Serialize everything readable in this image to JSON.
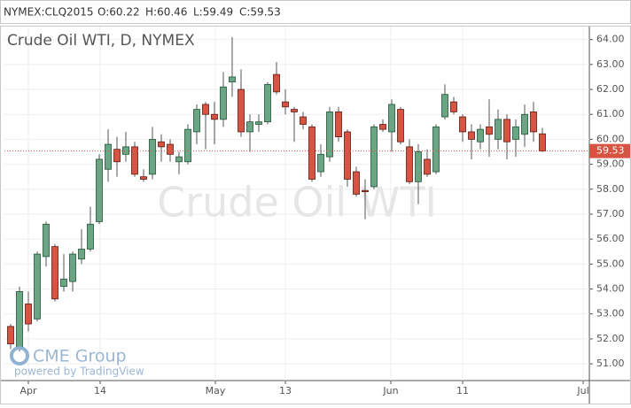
{
  "header": {
    "symbol": "NYMEX:CLQ2015",
    "ohlc": [
      "O:60.22",
      "H:60.46",
      "L:59.49",
      "C:59.53"
    ]
  },
  "chart_data": {
    "type": "candlestick",
    "title": "Crude Oil WTI, D, NYMEX",
    "watermark": "Crude Oil WTI",
    "logo": "CME Group",
    "powered_by": "powered by TradingView",
    "up_color": "#6ba583",
    "down_color": "#d75442",
    "last_price": 59.53,
    "last_price_color": "#d75442",
    "open": [
      52.5,
      51.7,
      53.4,
      52.8,
      55.3,
      55.7,
      54.1,
      54.3,
      55.2,
      55.6,
      56.7,
      58.8,
      59.6,
      59.4,
      59.7,
      58.5,
      58.6,
      59.9,
      59.8,
      59.1,
      59.1,
      60.3,
      61.4,
      61.0,
      60.8,
      62.3,
      62.0,
      60.3,
      60.6,
      60.7,
      62.6,
      61.5,
      61.2,
      60.9,
      60.5,
      58.7,
      59.3,
      61.1,
      60.3,
      58.7,
      57.95,
      58.1,
      60.6,
      60.3,
      61.2,
      59.7,
      58.3,
      59.2,
      58.7,
      60.9,
      61.5,
      60.9,
      60.3,
      59.9,
      60.5,
      60.0,
      60.8,
      60.0,
      60.2,
      61.1,
      60.22
    ],
    "high": [
      52.6,
      54.1,
      53.9,
      55.5,
      56.7,
      55.8,
      55.4,
      55.5,
      56.4,
      57.3,
      59.4,
      60.4,
      60.1,
      60.3,
      59.9,
      58.8,
      60.5,
      60.2,
      60.0,
      59.5,
      60.6,
      61.4,
      61.5,
      61.5,
      62.7,
      64.1,
      62.8,
      61.0,
      61.0,
      62.3,
      63.1,
      62.0,
      61.3,
      61.1,
      60.6,
      59.8,
      61.3,
      61.3,
      60.4,
      58.9,
      58.4,
      60.6,
      60.8,
      61.6,
      61.3,
      60.0,
      59.8,
      59.6,
      60.6,
      62.2,
      61.7,
      61.0,
      60.6,
      60.6,
      61.6,
      61.2,
      61.0,
      60.8,
      61.4,
      61.5,
      60.46
    ],
    "low": [
      51.6,
      51.5,
      52.3,
      52.7,
      54.9,
      53.5,
      53.9,
      53.9,
      55.0,
      55.5,
      56.6,
      58.3,
      58.5,
      59.1,
      58.5,
      58.3,
      58.4,
      59.1,
      59.1,
      58.6,
      59.0,
      59.8,
      59.6,
      59.8,
      60.5,
      61.7,
      60.1,
      59.5,
      60.3,
      60.6,
      61.8,
      61.0,
      59.9,
      60.4,
      58.3,
      58.5,
      59.1,
      59.9,
      58.1,
      57.7,
      56.8,
      58.0,
      60.3,
      59.5,
      59.8,
      58.2,
      57.4,
      58.5,
      58.6,
      60.8,
      61.0,
      59.9,
      59.2,
      59.6,
      59.3,
      59.6,
      59.2,
      59.3,
      59.7,
      59.9,
      59.49
    ],
    "close": [
      51.8,
      53.9,
      52.6,
      55.4,
      56.6,
      53.6,
      54.4,
      55.4,
      55.6,
      56.6,
      59.2,
      59.8,
      59.1,
      59.7,
      58.6,
      58.4,
      60.0,
      59.7,
      59.4,
      59.3,
      60.4,
      61.2,
      61.0,
      60.8,
      62.1,
      62.5,
      60.3,
      60.7,
      60.7,
      62.2,
      61.9,
      61.3,
      61.1,
      60.6,
      58.4,
      59.4,
      61.1,
      60.1,
      58.4,
      57.8,
      57.9,
      60.5,
      60.4,
      61.4,
      59.9,
      58.3,
      59.5,
      58.6,
      60.5,
      61.8,
      61.1,
      60.3,
      60.0,
      60.4,
      60.2,
      60.8,
      59.9,
      60.5,
      61.0,
      60.3,
      59.53
    ],
    "xlim": [
      -0.7,
      65.3
    ],
    "xticks": [
      {
        "value": 2,
        "label": "Apr"
      },
      {
        "value": 10.1,
        "label": "14"
      },
      {
        "value": 23.1,
        "label": "May"
      },
      {
        "value": 31,
        "label": "13"
      },
      {
        "value": 42.9,
        "label": "Jun"
      },
      {
        "value": 51,
        "label": "11"
      },
      {
        "value": 64.6,
        "label": "Jul"
      }
    ],
    "ylim": [
      50.33,
      64.52
    ],
    "yticks": [
      {
        "value": 51,
        "label": "51.00"
      },
      {
        "value": 52,
        "label": "52.00"
      },
      {
        "value": 53,
        "label": "53.00"
      },
      {
        "value": 54,
        "label": "54.00"
      },
      {
        "value": 55,
        "label": "55.00"
      },
      {
        "value": 56,
        "label": "56.00"
      },
      {
        "value": 57,
        "label": "57.00"
      },
      {
        "value": 58,
        "label": "58.00"
      },
      {
        "value": 59,
        "label": "59.00"
      },
      {
        "value": 60,
        "label": "60.00"
      },
      {
        "value": 61,
        "label": "61.00"
      },
      {
        "value": 62,
        "label": "62.00"
      },
      {
        "value": 63,
        "label": "63.00"
      },
      {
        "value": 64,
        "label": "64.00"
      }
    ],
    "grid": true
  }
}
